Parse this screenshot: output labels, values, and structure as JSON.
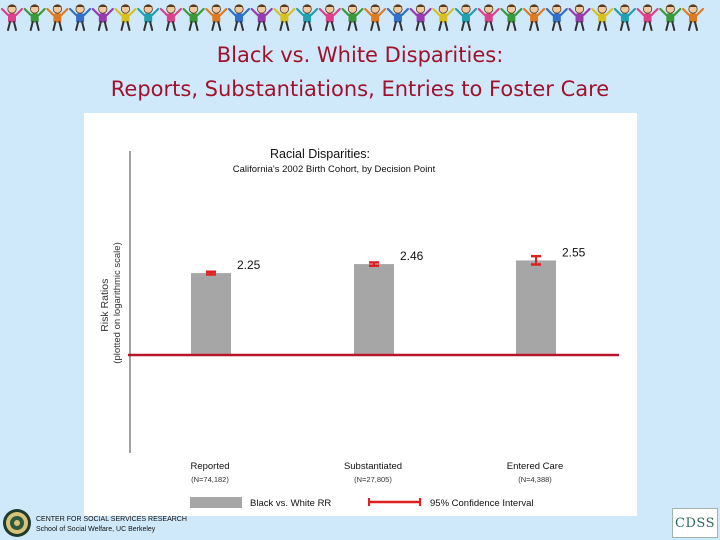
{
  "slide": {
    "title_line1": "Black vs. White Disparities:",
    "title_line2": "Reports, Substantiations, Entries to Foster Care"
  },
  "colors": {
    "background": "#cfe9fb",
    "title": "#a0122c",
    "bar": "#a6a6a6",
    "baseline": "#b8142c",
    "ci": "#e02020"
  },
  "chart_data": {
    "type": "bar",
    "title": "Racial Disparities:",
    "subtitle": "California's 2002 Birth Cohort, by Decision Point",
    "ylabel_line1": "Risk Ratios",
    "ylabel_line2": "(plotted on logarithmic scale)",
    "yscale": "log",
    "baseline_value": 1,
    "categories": [
      "Reported",
      "Substantiated",
      "Entered Care"
    ],
    "category_n": [
      "(N=74,182)",
      "(N=27,805)",
      "(N=4,388)"
    ],
    "values": [
      2.25,
      2.46,
      2.55
    ],
    "value_labels": [
      "2.25",
      "2.46",
      "2.55"
    ],
    "ci_low": [
      2.22,
      2.42,
      2.45
    ],
    "ci_high": [
      2.28,
      2.5,
      2.66
    ],
    "legend": {
      "bar_label": "Black vs. White RR",
      "ci_label": "95% Confidence Interval"
    }
  },
  "footer": {
    "org_line1": "CENTER FOR SOCIAL SERVICES RESEARCH",
    "org_line2": "School of Social Welfare, UC Berkeley",
    "logo_text": "CDSS"
  }
}
